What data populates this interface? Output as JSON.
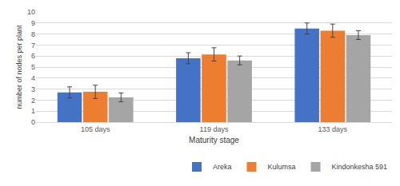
{
  "chart_data": {
    "type": "bar",
    "x_label": "Maturity stage",
    "y_label": "number of nodes per plant",
    "categories": [
      "105 days",
      "119 days",
      "133 days"
    ],
    "series": [
      {
        "name": "Areka",
        "color": "#4472c4",
        "values": [
          2.7,
          5.8,
          8.5
        ],
        "errors": [
          0.5,
          0.5,
          0.5
        ]
      },
      {
        "name": "Kulumsa",
        "color": "#ed7d31",
        "values": [
          2.75,
          6.15,
          8.3
        ],
        "errors": [
          0.6,
          0.6,
          0.6
        ]
      },
      {
        "name": "Kindonkesha 591",
        "color": "#a5a5a5",
        "values": [
          2.25,
          5.6,
          7.9
        ],
        "errors": [
          0.4,
          0.4,
          0.4
        ]
      }
    ],
    "ylim": [
      0,
      10
    ],
    "yticks": [
      0,
      1,
      2,
      3,
      4,
      5,
      6,
      7,
      8,
      9,
      10
    ],
    "grid": true,
    "legend": "bottom"
  }
}
